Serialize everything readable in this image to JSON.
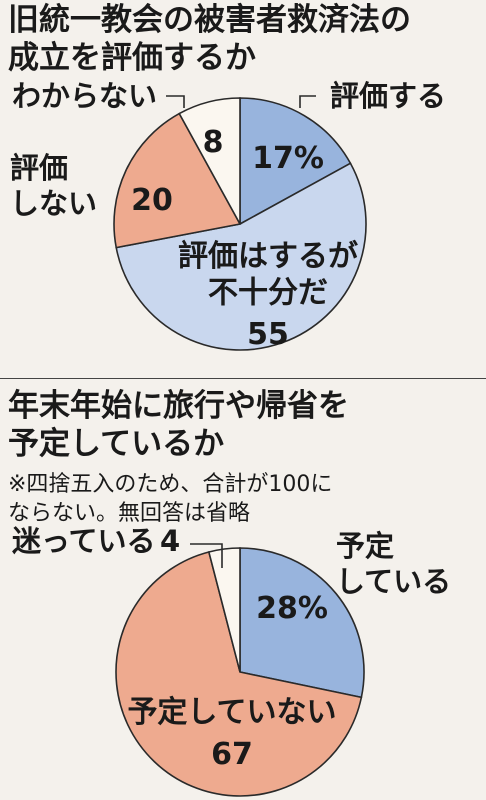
{
  "chart_data": [
    {
      "type": "pie",
      "title": "旧統一教会の被害者救済法の\n成立を評価するか",
      "slices": [
        {
          "label": "評価する",
          "value": 17,
          "display": "17%",
          "color": "#98b4dd"
        },
        {
          "label": "評価はするが\n不十分だ",
          "value": 55,
          "display": "55",
          "color": "#c9d7ee"
        },
        {
          "label": "評価\nしない",
          "value": 20,
          "display": "20",
          "color": "#eeaa8f"
        },
        {
          "label": "わからない",
          "value": 8,
          "display": "8",
          "color": "#fbf7f0"
        }
      ]
    },
    {
      "type": "pie",
      "title": "年末年始に旅行や帰省を\n予定しているか",
      "note": "※四捨五入のため、合計が100に\nならない。無回答は省略",
      "slices": [
        {
          "label": "予定\nしている",
          "value": 28,
          "display": "28%",
          "color": "#98b4dd"
        },
        {
          "label": "予定していない",
          "value": 67,
          "display": "67",
          "color": "#eeaa8f"
        },
        {
          "label": "迷っている",
          "value": 4,
          "display": "4",
          "color": "#fbf7f0"
        }
      ]
    }
  ]
}
